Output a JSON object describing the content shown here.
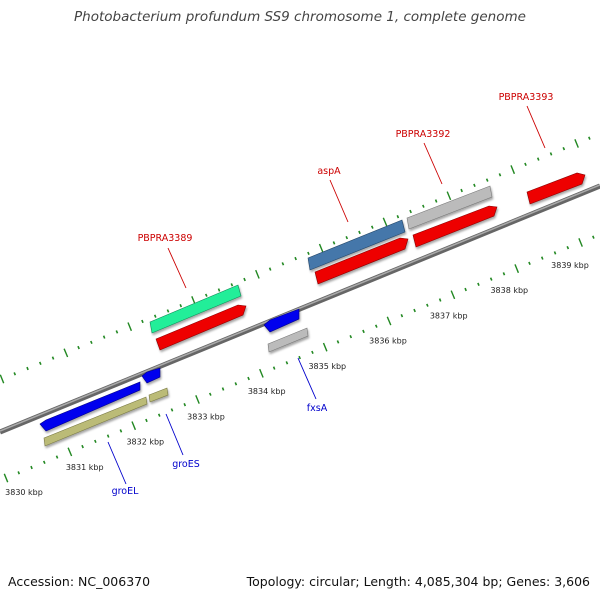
{
  "title": "Photobacterium profundum SS9 chromosome 1, complete genome",
  "footer": {
    "accession": "Accession: NC_006370",
    "summary": "Topology: circular; Length: 4,085,304 bp; Genes: 3,606"
  },
  "colors": {
    "forward_label": "#cc0000",
    "reverse_label": "#0000cc",
    "backbone": "#888888",
    "ticks": "#228822"
  },
  "scale": {
    "labels": [
      "3830 kbp",
      "3831 kbp",
      "3832 kbp",
      "3833 kbp",
      "3834 kbp",
      "3835 kbp",
      "3836 kbp",
      "3837 kbp",
      "3838 kbp",
      "3839 kbp"
    ]
  },
  "genes": [
    {
      "name": "groEL",
      "strand": "reverse",
      "color": "#0000ee"
    },
    {
      "name": "groES",
      "strand": "reverse",
      "color": "#0000ee"
    },
    {
      "name": "fxsA",
      "strand": "reverse",
      "color": "#0000ee"
    },
    {
      "name": "PBPRA3389",
      "strand": "forward",
      "color": "#ee0000"
    },
    {
      "name": "aspA",
      "strand": "forward",
      "color": "#ee0000"
    },
    {
      "name": "PBPRA3392",
      "strand": "forward",
      "color": "#ee0000"
    },
    {
      "name": "PBPRA3393",
      "strand": "forward",
      "color": "#ee0000"
    }
  ],
  "feature_tracks": [
    {
      "color": "#bbbb77",
      "strand": "reverse"
    },
    {
      "color": "#bbbbbb",
      "strand": "reverse"
    },
    {
      "color": "#22ee99",
      "strand": "forward"
    },
    {
      "color": "#4477aa",
      "strand": "forward"
    },
    {
      "color": "#bbbbbb",
      "strand": "forward"
    }
  ]
}
